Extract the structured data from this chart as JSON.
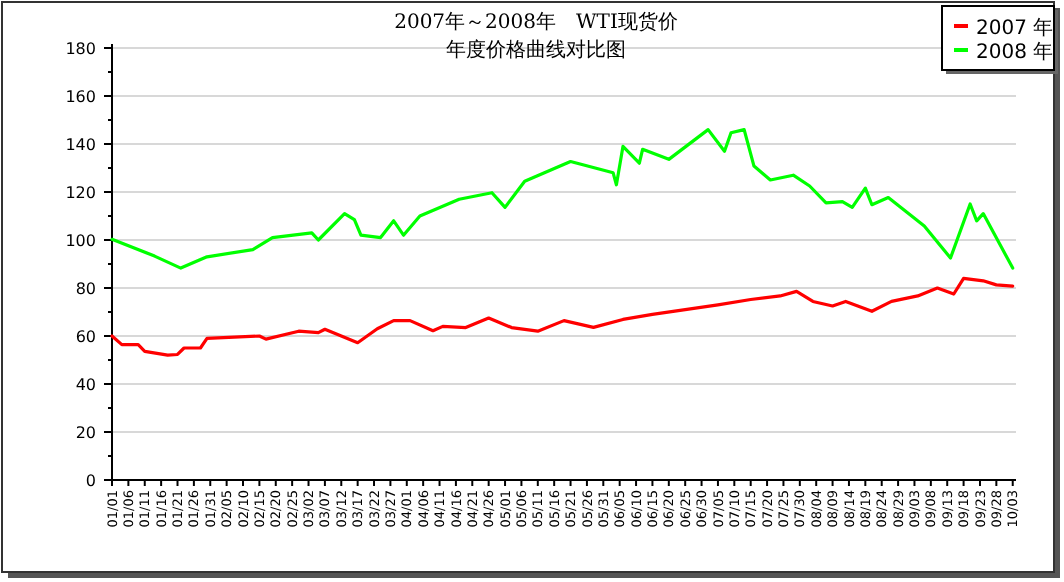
{
  "chart_data": {
    "type": "line",
    "title": "2007年～2008年　WTI现货价",
    "subtitle": "年度价格曲线对比图",
    "legend": "top right",
    "grid": "y",
    "marker": "none",
    "line_style": "solid",
    "xlim": [
      "--01-01",
      "--10-04"
    ],
    "xticks": [
      {
        "value": "--01-01",
        "label": "01/01"
      },
      {
        "value": "--01-06",
        "label": "01/06"
      },
      {
        "value": "--01-11",
        "label": "01/11"
      },
      {
        "value": "--01-16",
        "label": "01/16"
      },
      {
        "value": "--01-21",
        "label": "01/21"
      },
      {
        "value": "--01-26",
        "label": "01/26"
      },
      {
        "value": "--01-31",
        "label": "01/31"
      },
      {
        "value": "--02-05",
        "label": "02/05"
      },
      {
        "value": "--02-10",
        "label": "02/10"
      },
      {
        "value": "--02-15",
        "label": "02/15"
      },
      {
        "value": "--02-20",
        "label": "02/20"
      },
      {
        "value": "--02-25",
        "label": "02/25"
      },
      {
        "value": "--03-02",
        "label": "03/02"
      },
      {
        "value": "--03-07",
        "label": "03/07"
      },
      {
        "value": "--03-12",
        "label": "03/12"
      },
      {
        "value": "--03-17",
        "label": "03/17"
      },
      {
        "value": "--03-22",
        "label": "03/22"
      },
      {
        "value": "--03-27",
        "label": "03/27"
      },
      {
        "value": "--04-01",
        "label": "04/01"
      },
      {
        "value": "--04-06",
        "label": "04/06"
      },
      {
        "value": "--04-11",
        "label": "04/11"
      },
      {
        "value": "--04-16",
        "label": "04/16"
      },
      {
        "value": "--04-21",
        "label": "04/21"
      },
      {
        "value": "--04-26",
        "label": "04/26"
      },
      {
        "value": "--05-01",
        "label": "05/01"
      },
      {
        "value": "--05-06",
        "label": "05/06"
      },
      {
        "value": "--05-11",
        "label": "05/11"
      },
      {
        "value": "--05-16",
        "label": "05/16"
      },
      {
        "value": "--05-21",
        "label": "05/21"
      },
      {
        "value": "--05-26",
        "label": "05/26"
      },
      {
        "value": "--05-31",
        "label": "05/31"
      },
      {
        "value": "--06-05",
        "label": "06/05"
      },
      {
        "value": "--06-10",
        "label": "06/10"
      },
      {
        "value": "--06-15",
        "label": "06/15"
      },
      {
        "value": "--06-20",
        "label": "06/20"
      },
      {
        "value": "--06-25",
        "label": "06/25"
      },
      {
        "value": "--06-30",
        "label": "06/30"
      },
      {
        "value": "--07-05",
        "label": "07/05"
      },
      {
        "value": "--07-10",
        "label": "07/10"
      },
      {
        "value": "--07-15",
        "label": "07/15"
      },
      {
        "value": "--07-20",
        "label": "07/20"
      },
      {
        "value": "--07-25",
        "label": "07/25"
      },
      {
        "value": "--07-30",
        "label": "07/30"
      },
      {
        "value": "--08-04",
        "label": "08/04"
      },
      {
        "value": "--08-09",
        "label": "08/09"
      },
      {
        "value": "--08-14",
        "label": "08/14"
      },
      {
        "value": "--08-19",
        "label": "08/19"
      },
      {
        "value": "--08-24",
        "label": "08/24"
      },
      {
        "value": "--08-29",
        "label": "08/29"
      },
      {
        "value": "--09-03",
        "label": "09/03"
      },
      {
        "value": "--09-08",
        "label": "09/08"
      },
      {
        "value": "--09-13",
        "label": "09/13"
      },
      {
        "value": "--09-18",
        "label": "09/18"
      },
      {
        "value": "--09-23",
        "label": "09/23"
      },
      {
        "value": "--09-28",
        "label": "09/28"
      },
      {
        "value": "--10-03",
        "label": "10/03"
      }
    ],
    "ylim": [
      0,
      180
    ],
    "yticks": [
      0,
      {
        "value": 10,
        "label": null
      },
      20,
      {
        "value": 30,
        "label": null
      },
      40,
      {
        "value": 50,
        "label": null
      },
      60,
      {
        "value": 70,
        "label": null
      },
      80,
      {
        "value": 90,
        "label": null
      },
      100,
      {
        "value": 110,
        "label": null
      },
      120,
      {
        "value": 130,
        "label": null
      },
      140,
      {
        "value": 150,
        "label": null
      },
      160,
      {
        "value": 170,
        "label": null
      },
      180
    ],
    "series": [
      {
        "name": "2007 年",
        "color": "#ff0000",
        "x": [
          "--01-01",
          "--01-04",
          "--01-09",
          "--01-11",
          "--01-18",
          "--01-21",
          "--01-23",
          "--01-28",
          "--01-30",
          "--02-15",
          "--02-17",
          "--02-27",
          "--03-05",
          "--03-07",
          "--03-17",
          "--03-23",
          "--03-28",
          "--04-02",
          "--04-09",
          "--04-12",
          "--04-19",
          "--04-26",
          "--05-03",
          "--05-11",
          "--05-19",
          "--05-28",
          "--06-06",
          "--06-15",
          "--06-25",
          "--07-05",
          "--07-15",
          "--07-24",
          "--07-29",
          "--08-03",
          "--08-09",
          "--08-13",
          "--08-21",
          "--08-27",
          "--09-04",
          "--09-10",
          "--09-15",
          "--09-18",
          "--09-24",
          "--09-28",
          "--10-03"
        ],
        "values": [
          60,
          56.4,
          56.4,
          53.6,
          52,
          52.3,
          55,
          55,
          59,
          60,
          58.7,
          62,
          61.4,
          62.8,
          57.2,
          63,
          66.4,
          66.4,
          62.2,
          64,
          63.5,
          67.5,
          63.5,
          62,
          66.4,
          63.6,
          66.9,
          69,
          71,
          73,
          75.2,
          76.7,
          78.6,
          74.4,
          72.5,
          74.4,
          70.3,
          74.4,
          76.7,
          80,
          77.5,
          84,
          83,
          81.3,
          80.8
        ]
      },
      {
        "name": "2008 年",
        "color": "#00ff00",
        "x": [
          "--01-01",
          "--01-14",
          "--01-22",
          "--01-30",
          "--02-13",
          "--02-19",
          "--03-03",
          "--03-05",
          "--03-13",
          "--03-16",
          "--03-18",
          "--03-24",
          "--03-28",
          "--03-31",
          "--04-05",
          "--04-17",
          "--04-27",
          "--05-01",
          "--05-07",
          "--05-21",
          "--06-03",
          "--06-04",
          "--06-06",
          "--06-11",
          "--06-12",
          "--06-20",
          "--07-02",
          "--07-07",
          "--07-09",
          "--07-13",
          "--07-16",
          "--07-21",
          "--07-28",
          "--08-02",
          "--08-07",
          "--08-12",
          "--08-15",
          "--08-19",
          "--08-21",
          "--08-26",
          "--09-06",
          "--09-14",
          "--09-20",
          "--09-22",
          "--09-24",
          "--10-03"
        ],
        "values": [
          100.3,
          93.3,
          88.3,
          93,
          96,
          101,
          103,
          100,
          111,
          108.5,
          102,
          101,
          108,
          102,
          110,
          117,
          119.7,
          113.6,
          124.5,
          132.7,
          128,
          123,
          139,
          132,
          137.8,
          133.6,
          146,
          137,
          144.7,
          146,
          130.8,
          125,
          127,
          122.5,
          115.5,
          116,
          113.6,
          121.6,
          114.7,
          117.7,
          105.8,
          92.5,
          115,
          108,
          111,
          88.3
        ]
      }
    ]
  }
}
